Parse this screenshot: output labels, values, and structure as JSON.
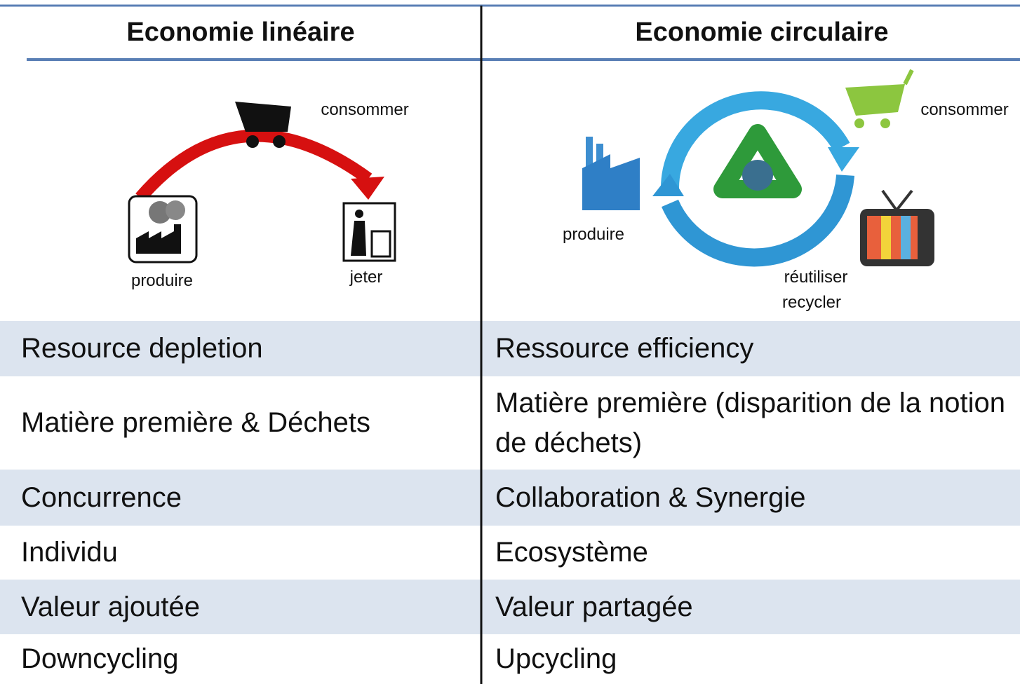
{
  "table": {
    "header": [
      "Economie linéaire",
      "Economie circulaire"
    ],
    "diagram": {
      "linear": {
        "consume": "consommer",
        "produce": "produire",
        "discard": "jeter"
      },
      "circular": {
        "consume": "consommer",
        "produce": "produire",
        "reuse": "réutiliser",
        "recycle": "recycler"
      }
    },
    "rows": [
      [
        "Resource depletion",
        "Ressource efficiency"
      ],
      [
        "Matière première & Déchets",
        "Matière première (disparition de la notion de déchets)"
      ],
      [
        "Concurrence",
        "Collaboration & Synergie"
      ],
      [
        "Individu",
        "Ecosystème"
      ],
      [
        "Valeur ajoutée",
        "Valeur partagée"
      ],
      [
        "Downcycling",
        "Upcycling"
      ]
    ]
  }
}
